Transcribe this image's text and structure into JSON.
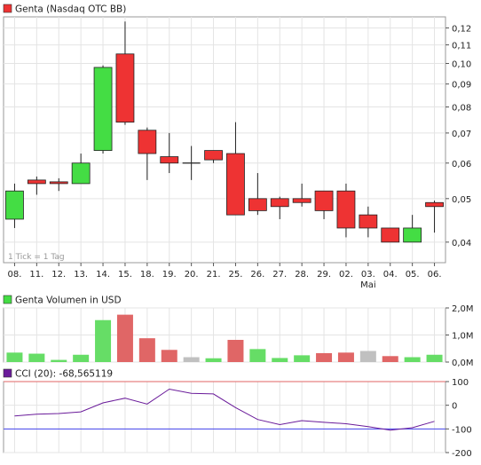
{
  "chart_data": [
    {
      "type": "candlestick",
      "legend": "Genta (Nasdaq OTC BB)",
      "scale": "log",
      "y_ticks": [
        "0,04",
        "0,05",
        "0,06",
        "0,07",
        "0,08",
        "0,09",
        "0,10",
        "0,11",
        "0,12"
      ],
      "y_tick_values": [
        0.04,
        0.05,
        0.06,
        0.07,
        0.08,
        0.09,
        0.1,
        0.11,
        0.12
      ],
      "ylim": [
        0.036,
        0.127
      ],
      "note": "1 Tick = 1 Tag",
      "month_label": "Mai",
      "month_label_index": 16,
      "categories": [
        "08.",
        "11.",
        "12.",
        "13.",
        "14.",
        "15.",
        "18.",
        "19.",
        "20.",
        "21.",
        "25.",
        "26.",
        "27.",
        "28.",
        "29.",
        "02.",
        "03.",
        "04.",
        "05.",
        "06."
      ],
      "candles": [
        {
          "open": 0.045,
          "high": 0.054,
          "low": 0.043,
          "close": 0.052
        },
        {
          "open": 0.055,
          "high": 0.056,
          "low": 0.051,
          "close": 0.054
        },
        {
          "open": 0.0545,
          "high": 0.0555,
          "low": 0.052,
          "close": 0.054
        },
        {
          "open": 0.054,
          "high": 0.063,
          "low": 0.054,
          "close": 0.06
        },
        {
          "open": 0.064,
          "high": 0.099,
          "low": 0.063,
          "close": 0.098
        },
        {
          "open": 0.105,
          "high": 0.124,
          "low": 0.073,
          "close": 0.074
        },
        {
          "open": 0.071,
          "high": 0.072,
          "low": 0.055,
          "close": 0.063
        },
        {
          "open": 0.062,
          "high": 0.07,
          "low": 0.057,
          "close": 0.06
        },
        {
          "open": 0.06,
          "high": 0.0655,
          "low": 0.055,
          "close": 0.06
        },
        {
          "open": 0.064,
          "high": 0.064,
          "low": 0.06,
          "close": 0.061
        },
        {
          "open": 0.063,
          "high": 0.074,
          "low": 0.046,
          "close": 0.046
        },
        {
          "open": 0.05,
          "high": 0.057,
          "low": 0.046,
          "close": 0.047
        },
        {
          "open": 0.05,
          "high": 0.0505,
          "low": 0.045,
          "close": 0.048
        },
        {
          "open": 0.05,
          "high": 0.054,
          "low": 0.048,
          "close": 0.049
        },
        {
          "open": 0.052,
          "high": 0.052,
          "low": 0.045,
          "close": 0.047
        },
        {
          "open": 0.052,
          "high": 0.054,
          "low": 0.041,
          "close": 0.043
        },
        {
          "open": 0.046,
          "high": 0.048,
          "low": 0.041,
          "close": 0.043
        },
        {
          "open": 0.043,
          "high": 0.043,
          "low": 0.04,
          "close": 0.04
        },
        {
          "open": 0.04,
          "high": 0.046,
          "low": 0.04,
          "close": 0.043
        },
        {
          "open": 0.049,
          "high": 0.0495,
          "low": 0.042,
          "close": 0.048
        }
      ],
      "colors": {
        "up": "#44dd44",
        "down": "#ee3333"
      }
    },
    {
      "type": "bar",
      "legend": "Genta Volumen in USD",
      "categories": [
        "08.",
        "11.",
        "12.",
        "13.",
        "14.",
        "15.",
        "18.",
        "19.",
        "20.",
        "21.",
        "25.",
        "26.",
        "27.",
        "28.",
        "29.",
        "02.",
        "03.",
        "04.",
        "05.",
        "06."
      ],
      "values": [
        0.35,
        0.31,
        0.08,
        0.27,
        1.55,
        1.75,
        0.88,
        0.45,
        0.18,
        0.14,
        0.82,
        0.48,
        0.15,
        0.25,
        0.33,
        0.35,
        0.41,
        0.22,
        0.18,
        0.27
      ],
      "bar_colors": [
        "up",
        "up",
        "up",
        "up",
        "up",
        "down",
        "down",
        "down",
        "neutral",
        "up",
        "down",
        "up",
        "up",
        "up",
        "down",
        "down",
        "neutral",
        "down",
        "up",
        "up"
      ],
      "y_ticks": [
        "0,0M",
        "1,0M",
        "2,0M"
      ],
      "y_tick_values": [
        0,
        1,
        2
      ],
      "ylim": [
        0,
        2
      ],
      "colors": {
        "up": "#66dd66",
        "down": "#e06666",
        "neutral": "#c0c0c0"
      }
    },
    {
      "type": "line",
      "legend": "CCI (20): -68,565119",
      "x": [
        "08.",
        "11.",
        "12.",
        "13.",
        "14.",
        "15.",
        "18.",
        "19.",
        "20.",
        "21.",
        "25.",
        "26.",
        "27.",
        "28.",
        "29.",
        "02.",
        "03.",
        "04.",
        "05.",
        "06."
      ],
      "values": [
        -45,
        -38,
        -35,
        -28,
        10,
        30,
        5,
        68,
        50,
        48,
        -10,
        -60,
        -82,
        -65,
        -72,
        -78,
        -90,
        -105,
        -95,
        -68
      ],
      "y_ticks": [
        "100",
        "0",
        "-100",
        "-200"
      ],
      "y_tick_values": [
        100,
        0,
        -100,
        -200
      ],
      "ylim": [
        -200,
        100
      ],
      "reference_lines": [
        100,
        -100
      ],
      "colors": {
        "line": "#6a1b9a",
        "ref_upper": "#e06666",
        "ref_lower": "#4444ee"
      }
    }
  ]
}
